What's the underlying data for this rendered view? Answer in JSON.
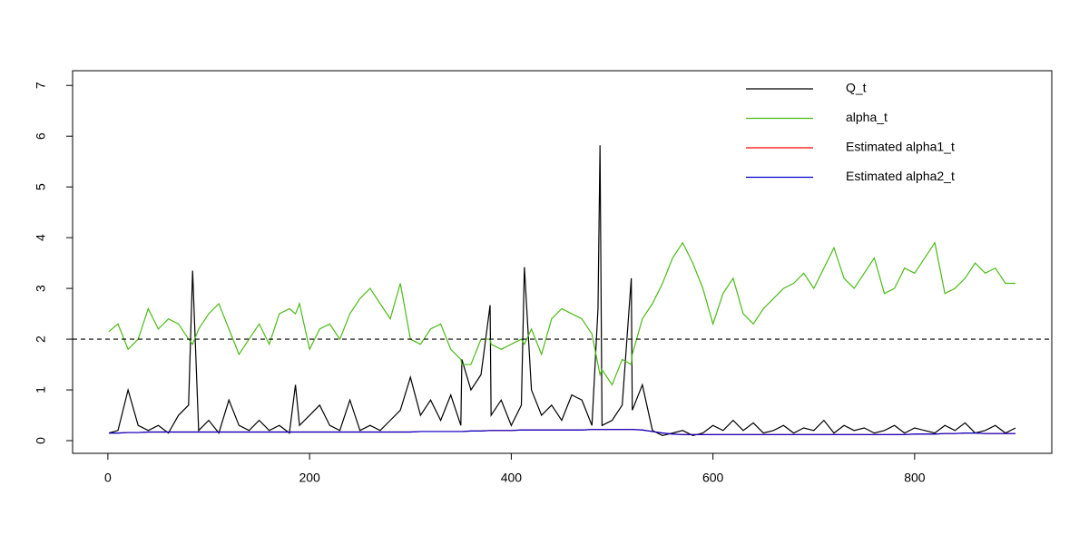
{
  "chart_data": {
    "type": "line",
    "x": [
      1,
      10,
      20,
      30,
      40,
      50,
      60,
      70,
      80,
      84,
      90,
      100,
      110,
      120,
      130,
      140,
      150,
      160,
      170,
      180,
      186,
      190,
      200,
      210,
      220,
      230,
      240,
      250,
      260,
      270,
      280,
      290,
      300,
      310,
      320,
      330,
      340,
      350,
      351,
      360,
      370,
      379,
      380,
      390,
      400,
      410,
      413,
      420,
      430,
      440,
      450,
      460,
      470,
      480,
      486,
      488,
      490,
      500,
      510,
      519,
      520,
      530,
      540,
      550,
      560,
      570,
      580,
      590,
      600,
      610,
      620,
      630,
      640,
      650,
      660,
      670,
      680,
      690,
      700,
      710,
      720,
      730,
      740,
      750,
      760,
      770,
      780,
      790,
      800,
      810,
      820,
      830,
      840,
      850,
      860,
      870,
      880,
      890,
      900
    ],
    "series": [
      {
        "name": "Q_t",
        "color": "#000000",
        "values": [
          0.15,
          0.2,
          1.0,
          0.3,
          0.2,
          0.3,
          0.15,
          0.5,
          0.7,
          3.35,
          0.2,
          0.4,
          0.15,
          0.8,
          0.3,
          0.2,
          0.4,
          0.2,
          0.3,
          0.15,
          1.1,
          0.3,
          0.5,
          0.7,
          0.3,
          0.2,
          0.8,
          0.2,
          0.3,
          0.2,
          0.4,
          0.6,
          1.25,
          0.5,
          0.8,
          0.4,
          0.9,
          0.3,
          1.6,
          1.0,
          1.3,
          2.67,
          0.5,
          0.8,
          0.3,
          0.7,
          3.42,
          1.0,
          0.5,
          0.7,
          0.4,
          0.9,
          0.8,
          0.3,
          2.6,
          5.82,
          0.3,
          0.4,
          0.7,
          3.2,
          0.6,
          1.1,
          0.2,
          0.1,
          0.15,
          0.2,
          0.1,
          0.15,
          0.3,
          0.2,
          0.4,
          0.2,
          0.35,
          0.15,
          0.2,
          0.3,
          0.15,
          0.25,
          0.2,
          0.4,
          0.15,
          0.3,
          0.2,
          0.25,
          0.15,
          0.2,
          0.3,
          0.15,
          0.25,
          0.2,
          0.15,
          0.3,
          0.2,
          0.35,
          0.15,
          0.2,
          0.3,
          0.15,
          0.25
        ]
      },
      {
        "name": "alpha_t",
        "color": "#4cbb17",
        "values": [
          2.15,
          2.3,
          1.8,
          2.0,
          2.6,
          2.2,
          2.4,
          2.3,
          2.0,
          1.9,
          2.2,
          2.5,
          2.7,
          2.2,
          1.7,
          2.0,
          2.3,
          1.9,
          2.5,
          2.6,
          2.5,
          2.7,
          1.8,
          2.2,
          2.3,
          2.0,
          2.5,
          2.8,
          3.0,
          2.7,
          2.4,
          3.1,
          2.0,
          1.9,
          2.2,
          2.3,
          1.8,
          1.6,
          1.5,
          1.5,
          2.0,
          2.0,
          1.9,
          1.8,
          1.9,
          2.0,
          1.9,
          2.2,
          1.7,
          2.4,
          2.6,
          2.5,
          2.4,
          2.1,
          1.5,
          1.3,
          1.4,
          1.1,
          1.6,
          1.5,
          1.7,
          2.4,
          2.7,
          3.1,
          3.6,
          3.9,
          3.5,
          3.0,
          2.3,
          2.9,
          3.2,
          2.5,
          2.3,
          2.6,
          2.8,
          3.0,
          3.1,
          3.3,
          3.0,
          3.4,
          3.8,
          3.2,
          3.0,
          3.3,
          3.6,
          2.9,
          3.0,
          3.4,
          3.3,
          3.6,
          3.9,
          2.9,
          3.0,
          3.2,
          3.5,
          3.3,
          3.4,
          3.1,
          3.1
        ]
      },
      {
        "name": "Estimated alpha1_t",
        "color": "#ff0000",
        "values": [
          0.15,
          0.15,
          0.16,
          0.16,
          0.17,
          0.17,
          0.17,
          0.17,
          0.17,
          0.17,
          0.17,
          0.17,
          0.17,
          0.17,
          0.17,
          0.17,
          0.17,
          0.17,
          0.17,
          0.17,
          0.17,
          0.17,
          0.17,
          0.17,
          0.17,
          0.17,
          0.17,
          0.17,
          0.17,
          0.17,
          0.17,
          0.17,
          0.17,
          0.18,
          0.18,
          0.18,
          0.18,
          0.18,
          0.18,
          0.19,
          0.19,
          0.2,
          0.2,
          0.2,
          0.2,
          0.21,
          0.21,
          0.21,
          0.21,
          0.21,
          0.21,
          0.21,
          0.21,
          0.22,
          0.22,
          0.22,
          0.22,
          0.22,
          0.22,
          0.22,
          0.22,
          0.21,
          0.18,
          0.15,
          0.13,
          0.12,
          0.12,
          0.12,
          0.12,
          0.12,
          0.12,
          0.12,
          0.12,
          0.12,
          0.12,
          0.12,
          0.12,
          0.12,
          0.12,
          0.12,
          0.12,
          0.12,
          0.12,
          0.12,
          0.12,
          0.12,
          0.12,
          0.12,
          0.13,
          0.13,
          0.13,
          0.14,
          0.14,
          0.15,
          0.15,
          0.14,
          0.14,
          0.14,
          0.14
        ]
      },
      {
        "name": "Estimated alpha2_t",
        "color": "#0000cc",
        "values": [
          0.15,
          0.15,
          0.16,
          0.16,
          0.17,
          0.17,
          0.17,
          0.17,
          0.17,
          0.17,
          0.17,
          0.17,
          0.17,
          0.17,
          0.17,
          0.17,
          0.17,
          0.17,
          0.17,
          0.17,
          0.17,
          0.17,
          0.17,
          0.17,
          0.17,
          0.17,
          0.17,
          0.17,
          0.17,
          0.17,
          0.17,
          0.17,
          0.17,
          0.18,
          0.18,
          0.18,
          0.18,
          0.18,
          0.18,
          0.19,
          0.19,
          0.2,
          0.2,
          0.2,
          0.2,
          0.21,
          0.21,
          0.21,
          0.21,
          0.21,
          0.21,
          0.21,
          0.21,
          0.22,
          0.22,
          0.22,
          0.22,
          0.22,
          0.22,
          0.22,
          0.22,
          0.21,
          0.18,
          0.15,
          0.13,
          0.12,
          0.12,
          0.12,
          0.12,
          0.12,
          0.12,
          0.12,
          0.12,
          0.12,
          0.12,
          0.12,
          0.12,
          0.12,
          0.12,
          0.12,
          0.12,
          0.12,
          0.12,
          0.12,
          0.12,
          0.12,
          0.12,
          0.12,
          0.13,
          0.13,
          0.13,
          0.14,
          0.14,
          0.15,
          0.15,
          0.14,
          0.14,
          0.14,
          0.14
        ]
      }
    ],
    "xlim": [
      -35,
      936
    ],
    "ylim": [
      -0.25,
      7.29
    ],
    "xticks": [
      0,
      200,
      400,
      600,
      800
    ],
    "yticks": [
      0,
      1,
      2,
      3,
      4,
      5,
      6,
      7
    ],
    "hline": 2,
    "legend": "topright",
    "grid": false
  }
}
